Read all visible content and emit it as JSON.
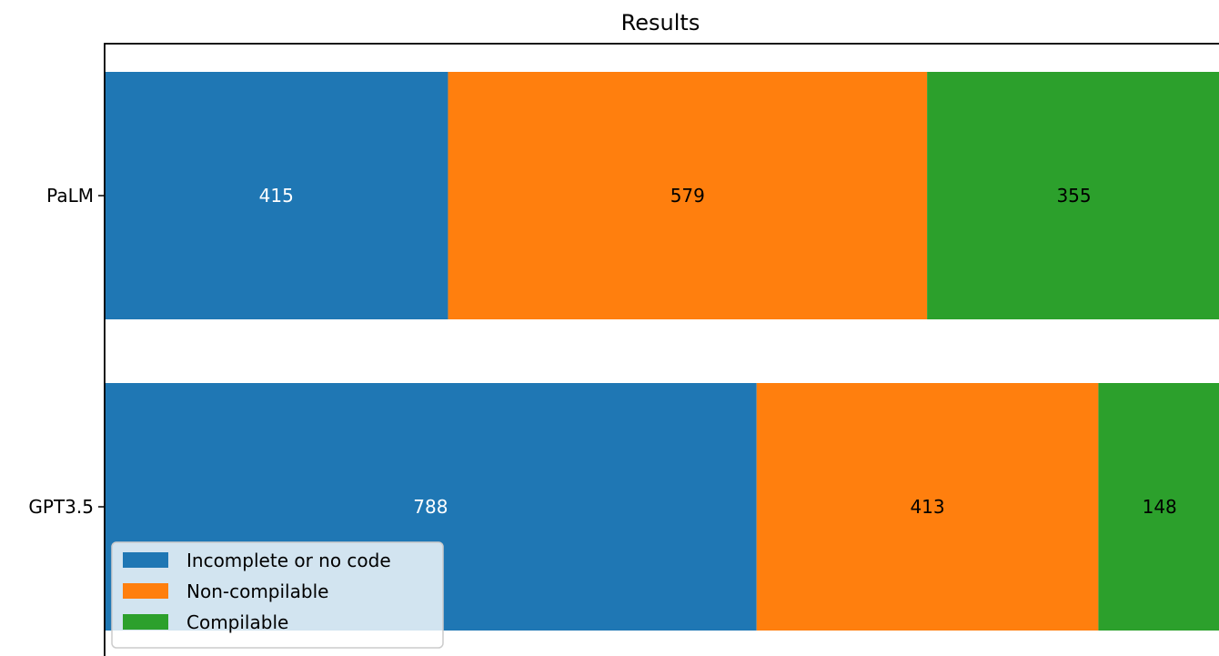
{
  "chart_data": {
    "type": "bar",
    "orientation": "horizontal",
    "stacked": true,
    "title": "Results",
    "xlabel": "",
    "ylabel": "",
    "categories": [
      "PaLM",
      "GPT3.5"
    ],
    "series": [
      {
        "name": "Incomplete or no code",
        "values": [
          415,
          788
        ],
        "color": "#1f77b4",
        "label_color": "#ffffff"
      },
      {
        "name": "Non-compilable",
        "values": [
          579,
          413
        ],
        "color": "#ff7f0e",
        "label_color": "#000000"
      },
      {
        "name": "Compilable",
        "values": [
          355,
          148
        ],
        "color": "#2ca02c",
        "label_color": "#000000"
      }
    ],
    "xlim": [
      0,
      1349
    ],
    "grid": false,
    "legend_position": "lower-left"
  }
}
